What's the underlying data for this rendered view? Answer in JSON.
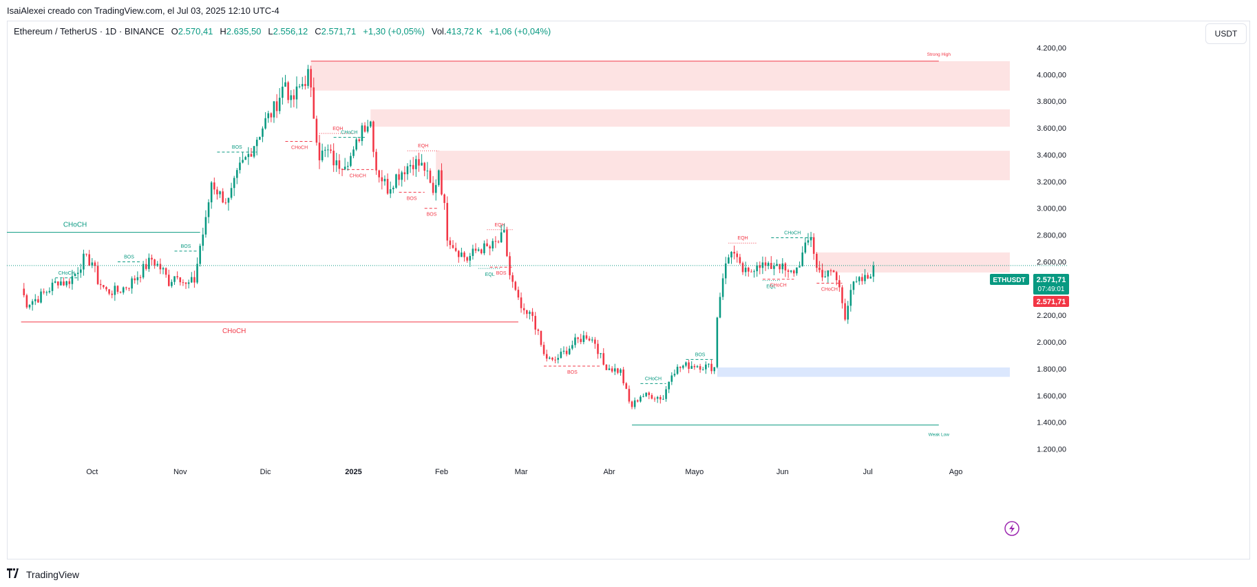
{
  "caption": "IsaiAlexei creado con TradingView.com, el Jul 03, 2025 12:10 UTC-4",
  "legend": {
    "symbol": "Ethereum / TetherUS · 1D · BINANCE",
    "o_label": "O",
    "o_value": "2.570,41",
    "h_label": "H",
    "h_value": "2.635,50",
    "l_label": "L",
    "l_value": "2.556,12",
    "c_label": "C",
    "c_value": "2.571,71",
    "change": "+1,30 (+0,05%)",
    "vol_label": "Vol.",
    "vol_value": "413,72 K",
    "vol_change": "+1,06 (+0,04%)"
  },
  "currency_button": "USDT",
  "footer": {
    "brand": "TradingView",
    "logo_icon": "tradingview-logo-icon"
  },
  "colors": {
    "up": "#089981",
    "down": "#f23645",
    "zone_red": "#fde3e3",
    "zone_blue": "#dbe7fd",
    "grid": "#f0f3fa"
  },
  "chart_data": {
    "type": "candlestick",
    "grid": false,
    "ylim": [
      1100,
      4300
    ],
    "y_ticks": [
      "4.200,00",
      "4.000,00",
      "3.800,00",
      "3.600,00",
      "3.400,00",
      "3.200,00",
      "3.000,00",
      "2.800,00",
      "2.600,00",
      "2.400,00",
      "2.200,00",
      "2.000,00",
      "1.800,00",
      "1.600,00",
      "1.400,00",
      "1.200,00"
    ],
    "y_tick_values": [
      4200,
      4000,
      3800,
      3600,
      3400,
      3200,
      3000,
      2800,
      2600,
      2400,
      2200,
      2000,
      1800,
      1600,
      1400,
      1200
    ],
    "x_ticks": [
      {
        "label": "Oct",
        "date": "2024-10-01"
      },
      {
        "label": "Nov",
        "date": "2024-11-01"
      },
      {
        "label": "Dic",
        "date": "2024-12-01"
      },
      {
        "label": "2025",
        "date": "2025-01-01",
        "bold": true
      },
      {
        "label": "Feb",
        "date": "2025-02-01"
      },
      {
        "label": "Mar",
        "date": "2025-03-01"
      },
      {
        "label": "Abr",
        "date": "2025-04-01"
      },
      {
        "label": "Mayo",
        "date": "2025-05-01"
      },
      {
        "label": "Jun",
        "date": "2025-06-01"
      },
      {
        "label": "Jul",
        "date": "2025-07-01"
      },
      {
        "label": "Ago",
        "date": "2025-08-01"
      }
    ],
    "price_path": [
      [
        "2024-09-06",
        2400
      ],
      [
        "2024-09-08",
        2290
      ],
      [
        "2024-09-12",
        2330
      ],
      [
        "2024-09-15",
        2380
      ],
      [
        "2024-09-19",
        2460
      ],
      [
        "2024-09-22",
        2440
      ],
      [
        "2024-09-25",
        2510
      ],
      [
        "2024-09-28",
        2620
      ],
      [
        "2024-10-01",
        2600
      ],
      [
        "2024-10-03",
        2460
      ],
      [
        "2024-10-06",
        2380
      ],
      [
        "2024-10-10",
        2380
      ],
      [
        "2024-10-14",
        2430
      ],
      [
        "2024-10-18",
        2520
      ],
      [
        "2024-10-22",
        2620
      ],
      [
        "2024-10-26",
        2530
      ],
      [
        "2024-10-28",
        2450
      ],
      [
        "2024-10-31",
        2520
      ],
      [
        "2024-11-03",
        2420
      ],
      [
        "2024-11-06",
        2460
      ],
      [
        "2024-11-08",
        2720
      ],
      [
        "2024-11-10",
        2900
      ],
      [
        "2024-11-12",
        3200
      ],
      [
        "2024-11-15",
        3100
      ],
      [
        "2024-11-18",
        3050
      ],
      [
        "2024-11-22",
        3300
      ],
      [
        "2024-11-25",
        3400
      ],
      [
        "2024-11-28",
        3530
      ],
      [
        "2024-12-01",
        3650
      ],
      [
        "2024-12-04",
        3740
      ],
      [
        "2024-12-08",
        3950
      ],
      [
        "2024-12-10",
        3780
      ],
      [
        "2024-12-13",
        3900
      ],
      [
        "2024-12-16",
        4000
      ],
      [
        "2024-12-18",
        3700
      ],
      [
        "2024-12-20",
        3400
      ],
      [
        "2024-12-23",
        3420
      ],
      [
        "2024-12-26",
        3320
      ],
      [
        "2024-12-29",
        3360
      ],
      [
        "2025-01-01",
        3400
      ],
      [
        "2025-01-04",
        3620
      ],
      [
        "2025-01-07",
        3650
      ],
      [
        "2025-01-09",
        3300
      ],
      [
        "2025-01-13",
        3150
      ],
      [
        "2025-01-16",
        3240
      ],
      [
        "2025-01-19",
        3300
      ],
      [
        "2025-01-22",
        3350
      ],
      [
        "2025-01-26",
        3300
      ],
      [
        "2025-01-29",
        3100
      ],
      [
        "2025-01-31",
        3300
      ],
      [
        "2025-02-02",
        3000
      ],
      [
        "2025-02-03",
        2800
      ],
      [
        "2025-02-06",
        2700
      ],
      [
        "2025-02-10",
        2620
      ],
      [
        "2025-02-14",
        2700
      ],
      [
        "2025-02-18",
        2700
      ],
      [
        "2025-02-21",
        2750
      ],
      [
        "2025-02-23",
        2800
      ],
      [
        "2025-02-25",
        2500
      ],
      [
        "2025-02-28",
        2300
      ],
      [
        "2025-03-02",
        2200
      ],
      [
        "2025-03-05",
        2200
      ],
      [
        "2025-03-09",
        1900
      ],
      [
        "2025-03-12",
        1850
      ],
      [
        "2025-03-16",
        1920
      ],
      [
        "2025-03-20",
        2000
      ],
      [
        "2025-03-24",
        2050
      ],
      [
        "2025-03-27",
        2000
      ],
      [
        "2025-03-30",
        1830
      ],
      [
        "2025-04-02",
        1800
      ],
      [
        "2025-04-05",
        1780
      ],
      [
        "2025-04-08",
        1550
      ],
      [
        "2025-04-09",
        1520
      ],
      [
        "2025-04-12",
        1600
      ],
      [
        "2025-04-16",
        1600
      ],
      [
        "2025-04-20",
        1580
      ],
      [
        "2025-04-23",
        1780
      ],
      [
        "2025-04-27",
        1820
      ],
      [
        "2025-05-01",
        1830
      ],
      [
        "2025-05-04",
        1820
      ],
      [
        "2025-05-08",
        1810
      ],
      [
        "2025-05-09",
        2200
      ],
      [
        "2025-05-11",
        2500
      ],
      [
        "2025-05-14",
        2700
      ],
      [
        "2025-05-17",
        2550
      ],
      [
        "2025-05-20",
        2500
      ],
      [
        "2025-05-23",
        2600
      ],
      [
        "2025-05-27",
        2550
      ],
      [
        "2025-05-30",
        2600
      ],
      [
        "2025-06-03",
        2500
      ],
      [
        "2025-06-06",
        2550
      ],
      [
        "2025-06-09",
        2700
      ],
      [
        "2025-06-11",
        2800
      ],
      [
        "2025-06-13",
        2550
      ],
      [
        "2025-06-16",
        2500
      ],
      [
        "2025-06-19",
        2520
      ],
      [
        "2025-06-21",
        2400
      ],
      [
        "2025-06-23",
        2200
      ],
      [
        "2025-06-25",
        2400
      ],
      [
        "2025-06-28",
        2450
      ],
      [
        "2025-07-01",
        2480
      ],
      [
        "2025-07-03",
        2572
      ]
    ],
    "zones": [
      {
        "from": "2024-12-17",
        "to": "2025-08-20",
        "y1": 3880,
        "y2": 4100,
        "color": "#fde3e3"
      },
      {
        "from": "2025-01-07",
        "to": "2025-08-20",
        "y1": 3610,
        "y2": 3740,
        "color": "#fde3e3"
      },
      {
        "from": "2025-01-30",
        "to": "2025-08-20",
        "y1": 3210,
        "y2": 3430,
        "color": "#fde3e3"
      },
      {
        "from": "2025-06-13",
        "to": "2025-08-20",
        "y1": 2520,
        "y2": 2670,
        "color": "#fde3e3"
      },
      {
        "from": "2025-05-09",
        "to": "2025-08-20",
        "y1": 1740,
        "y2": 1810,
        "color": "#dbe7fd"
      }
    ],
    "levels": [
      {
        "label": "CHoCH",
        "from": "2024-09-01",
        "to": "2024-11-08",
        "y": 2820,
        "color": "#089981",
        "label_at": "2024-09-25",
        "label_pos": "above",
        "size": 10
      },
      {
        "label": "CHoCH",
        "from": "2024-09-06",
        "to": "2025-02-28",
        "y": 2150,
        "color": "#f23645",
        "label_at": "2024-11-20",
        "label_pos": "below",
        "size": 10
      },
      {
        "label": "Strong High",
        "from": "2024-12-17",
        "to": "2025-07-26",
        "y": 4100,
        "color": "#f23645",
        "label_at": "2025-07-26",
        "label_pos": "above",
        "size": 6.5
      },
      {
        "label": "Weak Low",
        "from": "2025-04-09",
        "to": "2025-07-26",
        "y": 1380,
        "color": "#089981",
        "label_at": "2025-07-26",
        "label_pos": "below",
        "size": 6.5
      }
    ],
    "markers": [
      {
        "label": "CHoCH",
        "from": "2024-09-18",
        "to": "2024-09-26",
        "y": 2480,
        "color": "#089981",
        "pos": "above",
        "dash": true
      },
      {
        "label": "BOS",
        "from": "2024-10-10",
        "to": "2024-10-18",
        "y": 2600,
        "color": "#089981",
        "pos": "above",
        "dash": true
      },
      {
        "label": "BOS",
        "from": "2024-10-30",
        "to": "2024-11-07",
        "y": 2680,
        "color": "#089981",
        "pos": "above",
        "dash": true
      },
      {
        "label": "BOS",
        "from": "2024-11-14",
        "to": "2024-11-28",
        "y": 3420,
        "color": "#089981",
        "pos": "above",
        "dash": true
      },
      {
        "label": "CHoCH",
        "from": "2024-12-08",
        "to": "2024-12-18",
        "y": 3500,
        "color": "#f23645",
        "pos": "below",
        "dash": true
      },
      {
        "label": "EQH",
        "from": "2024-12-20",
        "to": "2025-01-02",
        "y": 3560,
        "color": "#f23645",
        "pos": "above",
        "dash": false
      },
      {
        "label": "CHoCH",
        "from": "2024-12-25",
        "to": "2025-01-05",
        "y": 3530,
        "color": "#089981",
        "pos": "above",
        "dash": true
      },
      {
        "label": "CHoCH",
        "from": "2024-12-28",
        "to": "2025-01-08",
        "y": 3290,
        "color": "#f23645",
        "pos": "below",
        "dash": true
      },
      {
        "label": "EQH",
        "from": "2025-01-20",
        "to": "2025-01-31",
        "y": 3430,
        "color": "#f23645",
        "pos": "above",
        "dash": false
      },
      {
        "label": "BOS",
        "from": "2025-01-17",
        "to": "2025-01-26",
        "y": 3120,
        "color": "#f23645",
        "pos": "below",
        "dash": true
      },
      {
        "label": "BOS",
        "from": "2025-01-26",
        "to": "2025-01-31",
        "y": 3000,
        "color": "#f23645",
        "pos": "below",
        "dash": true
      },
      {
        "label": "EQH",
        "from": "2025-02-17",
        "to": "2025-02-26",
        "y": 2840,
        "color": "#f23645",
        "pos": "above",
        "dash": false
      },
      {
        "label": "EQL",
        "from": "2025-02-14",
        "to": "2025-02-22",
        "y": 2550,
        "color": "#089981",
        "pos": "below",
        "dash": false
      },
      {
        "label": "BOS",
        "from": "2025-02-18",
        "to": "2025-02-26",
        "y": 2560,
        "color": "#f23645",
        "pos": "below",
        "dash": true
      },
      {
        "label": "BOS",
        "from": "2025-03-09",
        "to": "2025-03-29",
        "y": 1820,
        "color": "#f23645",
        "pos": "below",
        "dash": true
      },
      {
        "label": "CHoCH",
        "from": "2025-04-12",
        "to": "2025-04-21",
        "y": 1690,
        "color": "#089981",
        "pos": "above",
        "dash": true
      },
      {
        "label": "BOS",
        "from": "2025-04-28",
        "to": "2025-05-08",
        "y": 1870,
        "color": "#089981",
        "pos": "above",
        "dash": true
      },
      {
        "label": "EQH",
        "from": "2025-05-13",
        "to": "2025-05-23",
        "y": 2740,
        "color": "#f23645",
        "pos": "above",
        "dash": false
      },
      {
        "label": "CHoCH",
        "from": "2025-05-28",
        "to": "2025-06-12",
        "y": 2780,
        "color": "#089981",
        "pos": "above",
        "dash": true
      },
      {
        "label": "EQL",
        "from": "2025-05-25",
        "to": "2025-05-31",
        "y": 2460,
        "color": "#089981",
        "pos": "below",
        "dash": false
      },
      {
        "label": "CHoCH",
        "from": "2025-05-25",
        "to": "2025-06-05",
        "y": 2470,
        "color": "#f23645",
        "pos": "below",
        "dash": true
      },
      {
        "label": "CHoCH",
        "from": "2025-06-13",
        "to": "2025-06-22",
        "y": 2440,
        "color": "#f23645",
        "pos": "below",
        "dash": true
      }
    ],
    "last_price": {
      "symbol_tag": "ETHUSDT",
      "price_label": "2.571,71",
      "countdown": "07:49:01",
      "value": 2571.71,
      "second_label": "2.571,71"
    },
    "lightning_icon": "lightning-icon"
  }
}
